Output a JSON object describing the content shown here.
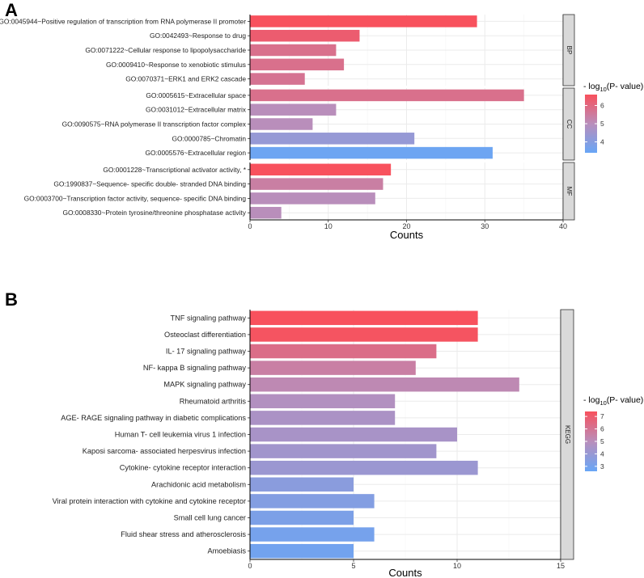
{
  "figure": {
    "panel_a_letter": "A",
    "panel_b_letter": "B"
  },
  "colors": {
    "high": "#F8515D",
    "mid": "#B98EBB",
    "low": "#68A6F6",
    "grid_major": "#EBEBEB",
    "grid_minor": "#F4F4F4",
    "strip_bg": "#D9D9D9"
  },
  "chart_data": [
    {
      "type": "bar",
      "orientation": "horizontal",
      "panel": "A",
      "xlabel": "Counts",
      "xlim": [
        0,
        40
      ],
      "xticks": [
        0,
        10,
        20,
        30,
        40
      ],
      "legend": {
        "title_prefix": "- log",
        "title_sub": "10",
        "title_suffix": "(P- value)",
        "range": [
          3.4,
          6.6
        ],
        "ticks": [
          4,
          5,
          6
        ],
        "placement": "right"
      },
      "facets": [
        {
          "name": "BP",
          "categories": [
            "GO:0045944~Positive regulation of transcription from RNA polymerase II promoter",
            "GO:0042493~Response to drug",
            "GO:0071222~Cellular response to lipopolysaccharide",
            "GO:0009410~Response to xenobiotic stimulus",
            "GO:0070371~ERK1 and ERK2 cascade"
          ],
          "values": [
            29,
            14,
            11,
            12,
            7
          ],
          "neglog10p": [
            6.6,
            6.3,
            5.8,
            5.8,
            5.7
          ]
        },
        {
          "name": "CC",
          "categories": [
            "GO:0005615~Extracellular space",
            "GO:0031012~Extracellular matrix",
            "GO:0090575~RNA polymerase II transcription factor complex",
            "GO:0000785~Chromatin",
            "GO:0005576~Extracellular region"
          ],
          "values": [
            35,
            11,
            8,
            21,
            31
          ],
          "neglog10p": [
            5.8,
            5.0,
            5.0,
            4.3,
            3.5
          ]
        },
        {
          "name": "MF",
          "categories": [
            "GO:0001228~Transcriptional activator activity, *",
            "GO:1990837~Sequence- specific double- stranded DNA binding",
            "GO:0003700~Transcription factor activity, sequence- specific DNA binding",
            "GO:0008330~Protein tyrosine/threonine phosphatase activity"
          ],
          "values": [
            18,
            17,
            16,
            4
          ],
          "neglog10p": [
            6.6,
            5.4,
            5.0,
            5.0
          ]
        }
      ]
    },
    {
      "type": "bar",
      "orientation": "horizontal",
      "panel": "B",
      "xlabel": "Counts",
      "xlim": [
        0,
        15
      ],
      "xticks": [
        0,
        5,
        10,
        15
      ],
      "legend": {
        "title_prefix": "- log",
        "title_sub": "10",
        "title_suffix": "(P- value)",
        "range": [
          2.6,
          7.4
        ],
        "ticks": [
          3,
          4,
          5,
          6,
          7
        ],
        "placement": "right"
      },
      "facets": [
        {
          "name": "KEGG",
          "categories": [
            "TNF signaling pathway",
            "Osteoclast differentiation",
            "IL- 17 signaling pathway",
            "NF- kappa B signaling pathway",
            "MAPK signaling pathway",
            "Rheumatoid arthritis",
            "AGE- RAGE signaling pathway in diabetic complications",
            "Human T- cell leukemia virus 1 infection",
            "Kaposi sarcoma- associated herpesvirus infection",
            "Cytokine- cytokine receptor interaction",
            "Arachidonic acid metabolism",
            "Viral protein interaction with cytokine and cytokine receptor",
            "Small cell lung cancer",
            "Fluid shear stress and atherosclerosis",
            "Amoebiasis"
          ],
          "values": [
            11,
            11,
            9,
            8,
            13,
            7,
            7,
            10,
            9,
            11,
            5,
            6,
            5,
            6,
            5
          ],
          "neglog10p": [
            7.4,
            7.3,
            6.3,
            5.6,
            5.2,
            4.8,
            4.6,
            4.5,
            4.3,
            4.1,
            3.6,
            3.4,
            3.2,
            3.0,
            2.9
          ]
        }
      ]
    }
  ]
}
